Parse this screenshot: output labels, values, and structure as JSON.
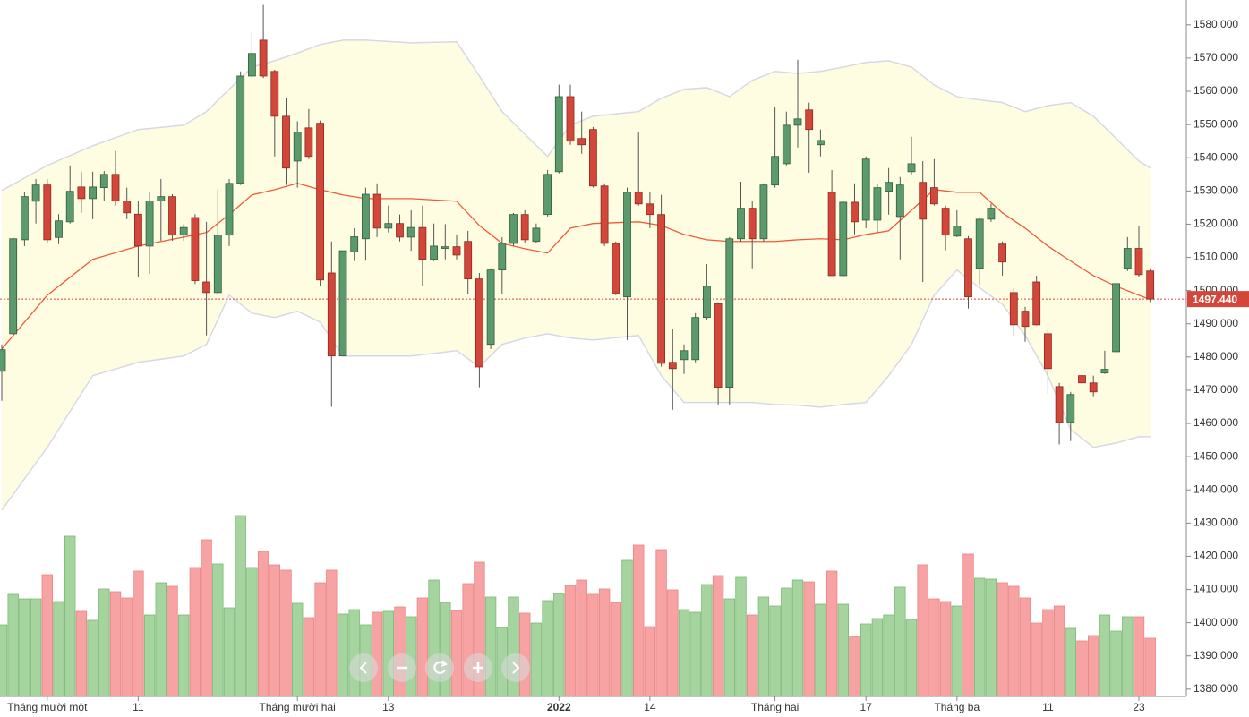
{
  "chart_data": {
    "type": "candlestick",
    "categories": [
      null,
      null,
      null,
      null,
      "Tháng mười một",
      null,
      null,
      null,
      null,
      null,
      null,
      null,
      "11",
      null,
      null,
      null,
      null,
      null,
      null,
      null,
      null,
      null,
      null,
      null,
      null,
      null,
      "Tháng mười hai",
      null,
      null,
      null,
      null,
      null,
      null,
      null,
      "13",
      null,
      null,
      null,
      null,
      null,
      null,
      null,
      null,
      null,
      null,
      null,
      null,
      null,
      null,
      "2022",
      null,
      null,
      null,
      null,
      null,
      null,
      null,
      "14",
      null,
      null,
      null,
      null,
      null,
      null,
      null,
      null,
      null,
      null,
      "Tháng hai",
      null,
      null,
      null,
      null,
      null,
      null,
      null,
      "17",
      null,
      null,
      null,
      null,
      null,
      null,
      null,
      "Tháng ba",
      null,
      null,
      null,
      null,
      null,
      null,
      null,
      "11",
      null,
      null,
      null,
      null,
      null,
      null,
      null,
      "23",
      null
    ],
    "open": [
      1475.7,
      1487,
      1515.3,
      1526.9,
      1531.8,
      1516,
      1520.7,
      1531.2,
      1527.7,
      1531,
      1535,
      1527,
      1523,
      1513.4,
      1527,
      1528.3,
      1516.7,
      1522,
      1502.6,
      1499.4,
      1516.7,
      1532.3,
      1564.6,
      1575.4,
      1566,
      1552.5,
      1539,
      1549,
      1550.4,
      1505.3,
      1480.3,
      1511.7,
      1515.6,
      1529,
      1518.8,
      1520.2,
      1516.1,
      1519,
      1509.4,
      1512.7,
      1513.2,
      1514.8,
      1503.5,
      1483.8,
      1506.2,
      1514.2,
      1522.9,
      1514.8,
      1522.9,
      1535.8,
      1558.4,
      1545.8,
      1548.5,
      1531.5,
      1514.2,
      1498.1,
      1529.6,
      1526.1,
      1522.9,
      1478.4,
      1479.2,
      1479.2,
      1491.9,
      1496,
      1470.9,
      1515.6,
      1524.8,
      1515.6,
      1531.8,
      1538.2,
      1549.8,
      1554.4,
      1543.9,
      1529.6,
      1504.5,
      1526.6,
      1521.2,
      1521.2,
      1529.9,
      1522.3,
      1535.8,
      1532.6,
      1531,
      1524.8,
      1516.4,
      1515.6,
      1506.7,
      1521.5,
      1514,
      1499.4,
      1493.8,
      1502.6,
      1487,
      1471.1,
      1460.3,
      1474.4,
      1472.2,
      1475.2,
      1481.6,
      1506.7,
      1512.7,
      1505.9
    ],
    "high": [
      1483.8,
      1516,
      1529.6,
      1533.6,
      1533.6,
      1523,
      1537.7,
      1535.8,
      1535.8,
      1536,
      1542,
      1531,
      1527,
      1529.6,
      1533.6,
      1529,
      1520,
      1523,
      1520.7,
      1530.4,
      1533.6,
      1566,
      1578,
      1586,
      1566.5,
      1557.9,
      1551,
      1554.7,
      1551.2,
      1514.8,
      1512,
      1518.8,
      1531,
      1532.3,
      1525.6,
      1522.9,
      1524.2,
      1525.6,
      1520.2,
      1520,
      1516.9,
      1518,
      1505.3,
      1506.7,
      1516.1,
      1523.4,
      1524.2,
      1520.2,
      1536.3,
      1562,
      1562,
      1553.9,
      1549.3,
      1532.3,
      1514.8,
      1531,
      1547.7,
      1529.6,
      1528.8,
      1488.4,
      1483.8,
      1493.2,
      1508,
      1496.5,
      1516.1,
      1532.8,
      1526.9,
      1532.3,
      1555.2,
      1553.9,
      1569.5,
      1556.6,
      1548.5,
      1536.3,
      1526.9,
      1532.3,
      1540.4,
      1532.3,
      1536.9,
      1534.2,
      1546.3,
      1539,
      1539.6,
      1525.6,
      1524.2,
      1516.4,
      1522.1,
      1526.1,
      1514.8,
      1500.8,
      1495.1,
      1504.5,
      1488.4,
      1472.2,
      1469.5,
      1477.1,
      1474.4,
      1481.9,
      1502.1,
      1516.1,
      1519.4,
      1506.7
    ],
    "low": [
      1466.8,
      1487,
      1513.4,
      1520.2,
      1514.2,
      1514,
      1520.2,
      1523.4,
      1521.5,
      1527,
      1525.6,
      1521.5,
      1504,
      1505,
      1515,
      1515,
      1515,
      1502,
      1486.5,
      1498.6,
      1513.4,
      1531.8,
      1564,
      1564,
      1540.4,
      1531.8,
      1531,
      1539.6,
      1501.3,
      1465,
      1480.3,
      1508.9,
      1509,
      1516.1,
      1517.5,
      1514.8,
      1512,
      1501.3,
      1508.9,
      1509.4,
      1509.4,
      1499.1,
      1470.9,
      1482.4,
      1499.1,
      1513.4,
      1514.2,
      1514.2,
      1522.3,
      1535.3,
      1543.9,
      1541.2,
      1531,
      1513.4,
      1498.6,
      1485.1,
      1525.6,
      1518.8,
      1477.1,
      1464.1,
      1474.9,
      1478.4,
      1491.1,
      1465.7,
      1465.7,
      1514.8,
      1506.7,
      1514.8,
      1531,
      1537.7,
      1543.1,
      1535.5,
      1540.4,
      1504.5,
      1504,
      1516.9,
      1518.8,
      1517.5,
      1522.9,
      1509.4,
      1535,
      1502.6,
      1525.6,
      1512.1,
      1516.1,
      1494.6,
      1501.8,
      1520.7,
      1504.5,
      1486.5,
      1484.6,
      1489.5,
      1469,
      1453.7,
      1454.7,
      1467.6,
      1468.2,
      1474.9,
      1481.1,
      1505.9,
      1504,
      1496.5
    ],
    "close": [
      1482.2,
      1515.6,
      1528.3,
      1531.8,
      1515.3,
      1521,
      1529.9,
      1527.7,
      1531.2,
      1535,
      1527,
      1523.4,
      1513.4,
      1527,
      1528.3,
      1516.7,
      1519,
      1503,
      1499.4,
      1516.7,
      1532.3,
      1564.6,
      1571.4,
      1564.6,
      1552.5,
      1536.9,
      1547.7,
      1540.4,
      1503.2,
      1480.3,
      1512,
      1516.2,
      1529,
      1518.8,
      1520.2,
      1516.1,
      1519,
      1509.4,
      1513.4,
      1513.2,
      1510.7,
      1503.5,
      1477,
      1506.2,
      1514.2,
      1522.9,
      1515.3,
      1518.8,
      1535,
      1558.4,
      1545,
      1543.9,
      1531.5,
      1514.2,
      1499.1,
      1529.6,
      1526.1,
      1522.9,
      1478.1,
      1476.5,
      1481.9,
      1491.9,
      1501.3,
      1470.9,
      1515.6,
      1524.8,
      1515.6,
      1531.8,
      1540.4,
      1549.8,
      1551.7,
      1548.5,
      1545.2,
      1504.5,
      1526.6,
      1520.7,
      1539.6,
      1531,
      1532.6,
      1531.8,
      1538.2,
      1521.5,
      1526.1,
      1516.7,
      1519.4,
      1498.1,
      1521.5,
      1524.8,
      1508.6,
      1489.7,
      1489.2,
      1489.7,
      1476.5,
      1460.3,
      1468.7,
      1472.2,
      1469.5,
      1476.3,
      1502.1,
      1512.7,
      1504.8,
      1497.44
    ],
    "volume": [
      80,
      114,
      109,
      109,
      136,
      106,
      179,
      95,
      85,
      120,
      117,
      110,
      140,
      91,
      127,
      123,
      91,
      144,
      175,
      148,
      99,
      202,
      144,
      162,
      147,
      141,
      104,
      88,
      127,
      141,
      92,
      97,
      80,
      94,
      95,
      100,
      89,
      110,
      130,
      105,
      96,
      126,
      150,
      111,
      77,
      111,
      93,
      82,
      107,
      115,
      124,
      130,
      114,
      120,
      105,
      152,
      169,
      78,
      164,
      119,
      97,
      94,
      125,
      135,
      109,
      133,
      91,
      111,
      101,
      121,
      130,
      128,
      103,
      140,
      103,
      67,
      81,
      87,
      91,
      122,
      86,
      147,
      109,
      106,
      101,
      159,
      132,
      131,
      127,
      123,
      110,
      82,
      97,
      101,
      76,
      62,
      68,
      91,
      73,
      89,
      89,
      65
    ],
    "bands": {
      "x": [
        0,
        4,
        8,
        12,
        16,
        18,
        20,
        22,
        24,
        26,
        28,
        30,
        32,
        36,
        40,
        42,
        44,
        46,
        48,
        50,
        52,
        56,
        58,
        60,
        62,
        64,
        66,
        68,
        70,
        72,
        74,
        76,
        78,
        80,
        82,
        84,
        86,
        88,
        90,
        92,
        94,
        96,
        98,
        100,
        101
      ],
      "upper": [
        1530.1,
        1537.7,
        1543.6,
        1548.5,
        1549.8,
        1553.9,
        1560.6,
        1567.3,
        1569.2,
        1571.5,
        1574.1,
        1575.4,
        1575.4,
        1574.6,
        1574.9,
        1564.6,
        1553.9,
        1547.1,
        1540.4,
        1549.8,
        1552.5,
        1553.9,
        1557.9,
        1560.6,
        1561.1,
        1558.4,
        1563.3,
        1566.0,
        1565.4,
        1566.0,
        1567.3,
        1568.7,
        1569.2,
        1567.3,
        1561.9,
        1558.4,
        1557.4,
        1556.6,
        1553.9,
        1555.7,
        1556.6,
        1552.5,
        1545.8,
        1539.0,
        1536.9
      ],
      "middle": [
        1482.4,
        1498.6,
        1509.4,
        1513.4,
        1516.1,
        1517.5,
        1522.9,
        1528.8,
        1530.4,
        1532.3,
        1530.4,
        1528.8,
        1527.7,
        1527.7,
        1526.9,
        1519.6,
        1514.2,
        1512.6,
        1511.3,
        1518.8,
        1520.2,
        1520.7,
        1519.6,
        1516.9,
        1515.3,
        1514.8,
        1514.8,
        1514.8,
        1515.3,
        1515.6,
        1515.3,
        1516.9,
        1518.0,
        1524.2,
        1530.4,
        1529.6,
        1529.6,
        1523.4,
        1518.8,
        1513.4,
        1508.9,
        1504.5,
        1501.3,
        1498.6,
        1497.3
      ],
      "lower": [
        1433.9,
        1452.8,
        1474.4,
        1478.4,
        1480.3,
        1483.8,
        1498.6,
        1493.2,
        1491.9,
        1493.8,
        1490.5,
        1480.3,
        1480.3,
        1480.3,
        1481.9,
        1477.1,
        1483.8,
        1485.7,
        1487.0,
        1485.7,
        1485.1,
        1486.5,
        1474.4,
        1466.3,
        1466.3,
        1466.3,
        1466.3,
        1465.7,
        1465.5,
        1464.9,
        1465.7,
        1466.3,
        1474.4,
        1483.8,
        1498.6,
        1506.2,
        1500.8,
        1495.9,
        1486.5,
        1474.4,
        1458.2,
        1452.8,
        1454.1,
        1456.0,
        1456.0
      ]
    },
    "last_price": {
      "value": 1497.44,
      "label": "1497.440"
    },
    "up_color": "#5b9a6c",
    "down_color": "#d2473a",
    "volume_up_color": "#a5d49f",
    "volume_down_color": "#f7a3a3",
    "band_color": "#fffde1",
    "band_line_color": "#d7d8e6",
    "middle_color": "#f05a3c",
    "ylim": [
      1377.8,
      1587.5
    ],
    "yticks": [
      {
        "value": 1380,
        "label": "1380.000"
      },
      {
        "value": 1390,
        "label": "1390.000"
      },
      {
        "value": 1400,
        "label": "1400.000"
      },
      {
        "value": 1410,
        "label": "1410.000"
      },
      {
        "value": 1420,
        "label": "1420.000"
      },
      {
        "value": 1430,
        "label": "1430.000"
      },
      {
        "value": 1440,
        "label": "1440.000"
      },
      {
        "value": 1450,
        "label": "1450.000"
      },
      {
        "value": 1460,
        "label": "1460.000"
      },
      {
        "value": 1470,
        "label": "1470.000"
      },
      {
        "value": 1480,
        "label": "1480.000"
      },
      {
        "value": 1490,
        "label": "1490.000"
      },
      {
        "value": 1500,
        "label": "1500.000"
      },
      {
        "value": 1510,
        "label": "1510.000"
      },
      {
        "value": 1520,
        "label": "1520.000"
      },
      {
        "value": 1530,
        "label": "1530.000"
      },
      {
        "value": 1540,
        "label": "1540.000"
      },
      {
        "value": 1550,
        "label": "1550.000"
      },
      {
        "value": 1560,
        "label": "1560.000"
      },
      {
        "value": 1570,
        "label": "1570.000"
      },
      {
        "value": 1580,
        "label": "1580.000"
      }
    ]
  }
}
